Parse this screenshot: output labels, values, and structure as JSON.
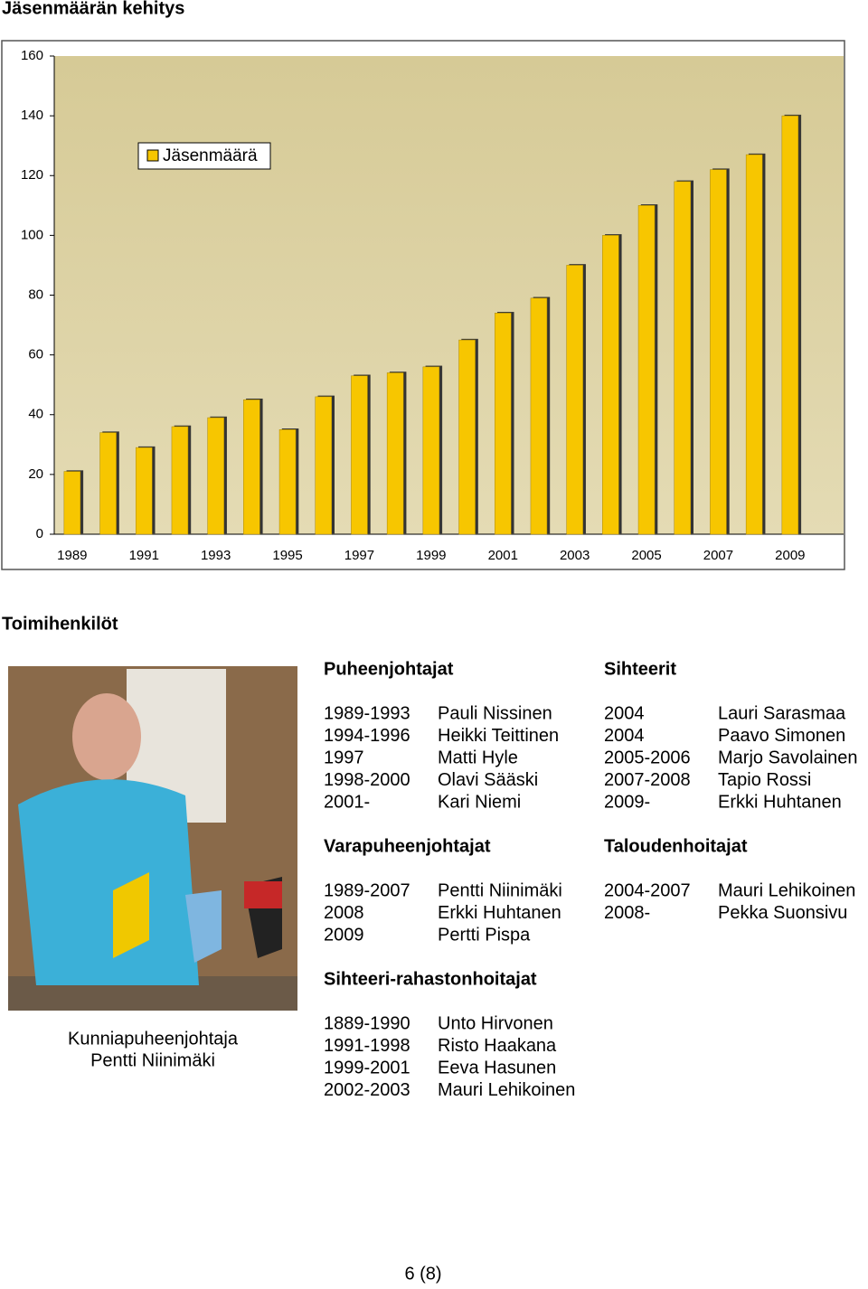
{
  "chart_data": {
    "type": "bar",
    "title": "Jäsenmäärän kehitys",
    "categories": [
      "1989",
      null,
      "1991",
      null,
      "1993",
      null,
      "1995",
      null,
      "1997",
      null,
      "1999",
      null,
      "2001",
      null,
      "2003",
      null,
      "2005",
      null,
      "2007",
      null,
      "2009"
    ],
    "series": [
      {
        "name": "Jäsenmäärä",
        "color": "#f7c600",
        "values": [
          21,
          34,
          29,
          36,
          39,
          45,
          35,
          46,
          53,
          54,
          56,
          65,
          74,
          79,
          90,
          100,
          110,
          118,
          122,
          127,
          140
        ]
      }
    ],
    "ylim": [
      0,
      160
    ],
    "yticks": [
      0,
      20,
      40,
      60,
      80,
      100,
      120,
      140,
      160
    ],
    "grid": false,
    "legend": "upper left"
  },
  "heading": "Toimihenkilöt",
  "photo_caption": [
    "Kunniapuheenjohtaja",
    "Pentti Niinimäki"
  ],
  "sections": [
    {
      "title": "Puheenjohtajat",
      "rows": [
        [
          "1989-1993",
          "Pauli Nissinen"
        ],
        [
          "1994-1996",
          "Heikki Teittinen"
        ],
        [
          "1997",
          "Matti Hyle"
        ],
        [
          "1998-2000",
          "Olavi Sääski"
        ],
        [
          "2001-",
          "Kari Niemi"
        ]
      ]
    },
    {
      "title": "Sihteerit",
      "rows": [
        [
          "2004",
          "Lauri Sarasmaa"
        ],
        [
          "2004",
          "Paavo Simonen"
        ],
        [
          "2005-2006",
          "Marjo Savolainen"
        ],
        [
          "2007-2008",
          "Tapio Rossi"
        ],
        [
          "2009-",
          "Erkki Huhtanen"
        ]
      ]
    },
    {
      "title": "Varapuheenjohtajat",
      "rows": [
        [
          "1989-2007",
          "Pentti Niinimäki"
        ],
        [
          "2008",
          "Erkki Huhtanen"
        ],
        [
          "2009",
          "Pertti Pispa"
        ]
      ]
    },
    {
      "title": "Taloudenhoitajat",
      "rows": [
        [
          "2004-2007",
          "Mauri Lehikoinen"
        ],
        [
          "2008-",
          "Pekka Suonsivu"
        ]
      ]
    },
    {
      "title": "Sihteeri-rahastonhoitajat",
      "rows": [
        [
          "1889-1990",
          "Unto Hirvonen"
        ],
        [
          "1991-1998",
          "Risto Haakana"
        ],
        [
          "1999-2001",
          "Eeva Hasunen"
        ],
        [
          "2002-2003",
          "Mauri Lehikoinen"
        ]
      ]
    }
  ],
  "page_number": "6 (8)"
}
